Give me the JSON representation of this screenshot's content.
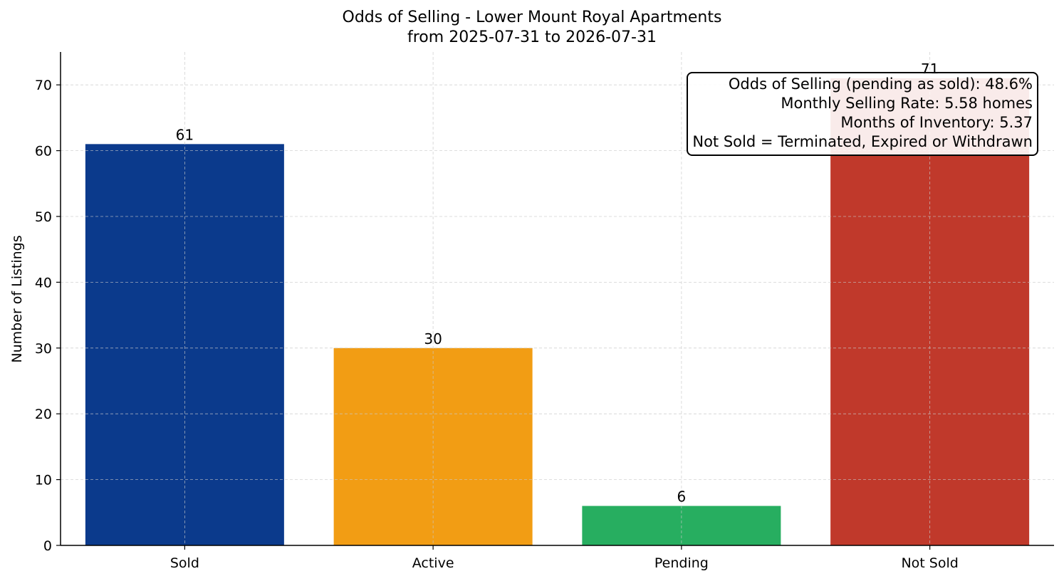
{
  "chart_data": {
    "type": "bar",
    "title": "Odds of Selling - Lower Mount Royal Apartments",
    "subtitle": "from 2025-07-31 to 2026-07-31",
    "xlabel": "",
    "ylabel": "Number of Listings",
    "categories": [
      "Sold",
      "Active",
      "Pending",
      "Not Sold"
    ],
    "values": [
      61,
      30,
      6,
      71
    ],
    "colors": [
      "#0b3a8c",
      "#f29d14",
      "#27ae60",
      "#c0392b"
    ],
    "ylim": [
      0,
      75
    ],
    "yticks": [
      0,
      10,
      20,
      30,
      40,
      50,
      60,
      70
    ],
    "grid": true,
    "annotation": [
      "Odds of Selling (pending as sold): 48.6%",
      "Monthly Selling Rate: 5.58 homes",
      "Months of Inventory: 5.37",
      "Not Sold = Terminated, Expired or Withdrawn"
    ]
  }
}
